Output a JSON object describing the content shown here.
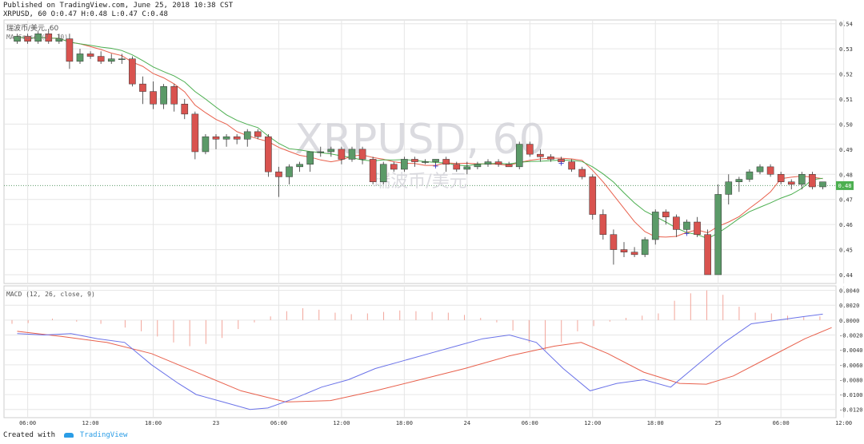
{
  "header": {
    "published": "Published on TradingView.com, June 25, 2018 10:38 CST",
    "symbol_line": "XRPUSD, 60 O:0.47 H:0.48 L:0.47 C:0.48"
  },
  "footer": {
    "created_with": "Created with",
    "brand": "TradingView"
  },
  "colors": {
    "up": "#5b9a68",
    "down": "#d9534f",
    "ma_fast": "#e8604c",
    "ma_slow": "#4caf50",
    "macd": "#6a72e8",
    "signal": "#e8604c",
    "hist": "#f2a59a",
    "grid": "#e6e6e6"
  },
  "chart_data": [
    {
      "type": "candlestick",
      "title": "瑞波币/美元, 60",
      "indicator_label": "MA Cross (7, 10)",
      "watermark": "XRPUSD, 60",
      "watermark_sub": "瑞波币/美元",
      "last_price_label": "0.48",
      "last_price": 0.4755,
      "ylim": [
        0.4365,
        0.5415
      ],
      "y_ticks": [
        "0.54",
        "0.53",
        "0.52",
        "0.51",
        "0.50",
        "0.49",
        "0.48",
        "0.47",
        "0.46",
        "0.45",
        "0.44"
      ],
      "x_ticks": [
        {
          "i": 1,
          "label": "06:00"
        },
        {
          "i": 7,
          "label": "12:00"
        },
        {
          "i": 13,
          "label": "18:00"
        },
        {
          "i": 19,
          "label": "23"
        },
        {
          "i": 25,
          "label": "06:00"
        },
        {
          "i": 31,
          "label": "12:00"
        },
        {
          "i": 37,
          "label": "18:00"
        },
        {
          "i": 43,
          "label": "24"
        },
        {
          "i": 49,
          "label": "06:00"
        },
        {
          "i": 55,
          "label": "12:00"
        },
        {
          "i": 61,
          "label": "18:00"
        },
        {
          "i": 67,
          "label": "25"
        },
        {
          "i": 73,
          "label": "06:00"
        },
        {
          "i": 79,
          "label": "12:00"
        }
      ],
      "candles": [
        [
          0.533,
          0.536,
          0.532,
          0.535
        ],
        [
          0.535,
          0.536,
          0.532,
          0.533
        ],
        [
          0.533,
          0.537,
          0.532,
          0.536
        ],
        [
          0.536,
          0.538,
          0.532,
          0.533
        ],
        [
          0.533,
          0.536,
          0.532,
          0.534
        ],
        [
          0.534,
          0.536,
          0.522,
          0.525
        ],
        [
          0.525,
          0.53,
          0.524,
          0.528
        ],
        [
          0.528,
          0.529,
          0.526,
          0.527
        ],
        [
          0.527,
          0.529,
          0.524,
          0.525
        ],
        [
          0.525,
          0.528,
          0.524,
          0.526
        ],
        [
          0.526,
          0.528,
          0.524,
          0.526
        ],
        [
          0.526,
          0.527,
          0.515,
          0.516
        ],
        [
          0.516,
          0.519,
          0.508,
          0.513
        ],
        [
          0.513,
          0.517,
          0.506,
          0.508
        ],
        [
          0.508,
          0.516,
          0.506,
          0.515
        ],
        [
          0.515,
          0.516,
          0.505,
          0.508
        ],
        [
          0.508,
          0.51,
          0.502,
          0.504
        ],
        [
          0.504,
          0.505,
          0.486,
          0.489
        ],
        [
          0.489,
          0.496,
          0.488,
          0.495
        ],
        [
          0.495,
          0.496,
          0.49,
          0.494
        ],
        [
          0.494,
          0.496,
          0.491,
          0.495
        ],
        [
          0.495,
          0.496,
          0.492,
          0.494
        ],
        [
          0.494,
          0.498,
          0.491,
          0.497
        ],
        [
          0.497,
          0.498,
          0.494,
          0.495
        ],
        [
          0.495,
          0.496,
          0.479,
          0.481
        ],
        [
          0.481,
          0.483,
          0.471,
          0.479
        ],
        [
          0.479,
          0.484,
          0.476,
          0.483
        ],
        [
          0.483,
          0.485,
          0.481,
          0.484
        ],
        [
          0.484,
          0.488,
          0.481,
          0.489
        ],
        [
          0.489,
          0.491,
          0.487,
          0.489
        ],
        [
          0.489,
          0.491,
          0.487,
          0.49
        ],
        [
          0.49,
          0.491,
          0.484,
          0.486
        ],
        [
          0.486,
          0.491,
          0.485,
          0.49
        ],
        [
          0.49,
          0.491,
          0.484,
          0.486
        ],
        [
          0.486,
          0.487,
          0.476,
          0.477
        ],
        [
          0.477,
          0.485,
          0.476,
          0.484
        ],
        [
          0.484,
          0.485,
          0.481,
          0.482
        ],
        [
          0.482,
          0.487,
          0.481,
          0.486
        ],
        [
          0.486,
          0.487,
          0.483,
          0.485
        ],
        [
          0.485,
          0.486,
          0.484,
          0.485
        ],
        [
          0.485,
          0.486,
          0.483,
          0.486
        ],
        [
          0.486,
          0.487,
          0.481,
          0.484
        ],
        [
          0.484,
          0.485,
          0.481,
          0.482
        ],
        [
          0.482,
          0.485,
          0.48,
          0.483
        ],
        [
          0.483,
          0.485,
          0.482,
          0.484
        ],
        [
          0.484,
          0.486,
          0.483,
          0.485
        ],
        [
          0.485,
          0.486,
          0.483,
          0.484
        ],
        [
          0.484,
          0.485,
          0.483,
          0.483
        ],
        [
          0.483,
          0.493,
          0.482,
          0.492
        ],
        [
          0.492,
          0.493,
          0.487,
          0.488
        ],
        [
          0.488,
          0.49,
          0.485,
          0.487
        ],
        [
          0.487,
          0.488,
          0.485,
          0.486
        ],
        [
          0.486,
          0.487,
          0.484,
          0.485
        ],
        [
          0.485,
          0.486,
          0.481,
          0.482
        ],
        [
          0.482,
          0.483,
          0.478,
          0.479
        ],
        [
          0.479,
          0.48,
          0.462,
          0.464
        ],
        [
          0.464,
          0.466,
          0.454,
          0.456
        ],
        [
          0.456,
          0.458,
          0.444,
          0.45
        ],
        [
          0.45,
          0.453,
          0.447,
          0.449
        ],
        [
          0.449,
          0.451,
          0.447,
          0.448
        ],
        [
          0.448,
          0.455,
          0.447,
          0.454
        ],
        [
          0.454,
          0.466,
          0.452,
          0.465
        ],
        [
          0.465,
          0.466,
          0.46,
          0.463
        ],
        [
          0.463,
          0.464,
          0.455,
          0.458
        ],
        [
          0.458,
          0.462,
          0.456,
          0.461
        ],
        [
          0.461,
          0.463,
          0.455,
          0.456
        ],
        [
          0.456,
          0.458,
          0.44,
          0.44
        ],
        [
          0.44,
          0.476,
          0.44,
          0.472
        ],
        [
          0.472,
          0.48,
          0.468,
          0.477
        ],
        [
          0.477,
          0.479,
          0.473,
          0.478
        ],
        [
          0.478,
          0.482,
          0.477,
          0.481
        ],
        [
          0.481,
          0.484,
          0.48,
          0.483
        ],
        [
          0.483,
          0.484,
          0.479,
          0.48
        ],
        [
          0.48,
          0.481,
          0.476,
          0.477
        ],
        [
          0.477,
          0.478,
          0.474,
          0.476
        ],
        [
          0.476,
          0.481,
          0.474,
          0.48
        ],
        [
          0.48,
          0.481,
          0.474,
          0.475
        ],
        [
          0.475,
          0.477,
          0.474,
          0.477
        ]
      ],
      "cross_markers": [
        40,
        52,
        64
      ]
    },
    {
      "type": "macd",
      "title": "MACD (12, 26, close, 9)",
      "ylim": [
        -0.0131,
        0.0046
      ],
      "y_ticks": [
        "0.0040",
        "0.0020",
        "0.0000",
        "-0.0020",
        "-0.0040",
        "-0.0060",
        "-0.0080",
        "-0.0100",
        "-0.0120"
      ],
      "macd": [
        [
          0,
          -0.0018
        ],
        [
          3,
          -0.002
        ],
        [
          6,
          -0.0018
        ],
        [
          9,
          -0.0025
        ],
        [
          12,
          -0.003
        ],
        [
          15,
          -0.006
        ],
        [
          18,
          -0.0085
        ],
        [
          20,
          -0.01
        ],
        [
          23,
          -0.011
        ],
        [
          26,
          -0.012
        ],
        [
          28,
          -0.0118
        ],
        [
          31,
          -0.0105
        ],
        [
          34,
          -0.009
        ],
        [
          37,
          -0.008
        ],
        [
          40,
          -0.0065
        ],
        [
          43,
          -0.0055
        ],
        [
          46,
          -0.0045
        ],
        [
          49,
          -0.0035
        ],
        [
          52,
          -0.0025
        ],
        [
          55,
          -0.002
        ],
        [
          58,
          -0.003
        ],
        [
          61,
          -0.0065
        ],
        [
          64,
          -0.0095
        ],
        [
          67,
          -0.0085
        ],
        [
          70,
          -0.008
        ],
        [
          73,
          -0.009
        ],
        [
          76,
          -0.006
        ],
        [
          79,
          -0.003
        ],
        [
          82,
          -0.0005
        ],
        [
          85,
          0.0
        ],
        [
          88,
          0.0005
        ],
        [
          90,
          0.0008
        ]
      ],
      "signal": [
        [
          0,
          -0.0015
        ],
        [
          5,
          -0.0022
        ],
        [
          10,
          -0.003
        ],
        [
          15,
          -0.0045
        ],
        [
          20,
          -0.007
        ],
        [
          25,
          -0.0095
        ],
        [
          30,
          -0.011
        ],
        [
          35,
          -0.0108
        ],
        [
          40,
          -0.0095
        ],
        [
          45,
          -0.008
        ],
        [
          50,
          -0.0065
        ],
        [
          55,
          -0.0048
        ],
        [
          60,
          -0.0035
        ],
        [
          63,
          -0.003
        ],
        [
          66,
          -0.0045
        ],
        [
          70,
          -0.007
        ],
        [
          74,
          -0.0085
        ],
        [
          77,
          -0.0086
        ],
        [
          80,
          -0.0075
        ],
        [
          84,
          -0.005
        ],
        [
          88,
          -0.0025
        ],
        [
          91,
          -0.001
        ]
      ],
      "histogram": [
        [
          0,
          -0.0005
        ],
        [
          2,
          -0.0004
        ],
        [
          5,
          0.0002
        ],
        [
          8,
          -0.0002
        ],
        [
          11,
          -0.0005
        ],
        [
          14,
          -0.001
        ],
        [
          16,
          -0.0015
        ],
        [
          18,
          -0.0022
        ],
        [
          20,
          -0.003
        ],
        [
          22,
          -0.0035
        ],
        [
          24,
          -0.0032
        ],
        [
          26,
          -0.0024
        ],
        [
          28,
          -0.0012
        ],
        [
          30,
          -0.0003
        ],
        [
          32,
          0.0005
        ],
        [
          34,
          0.0012
        ],
        [
          36,
          0.0016
        ],
        [
          38,
          0.0014
        ],
        [
          40,
          0.001
        ],
        [
          42,
          0.0008
        ],
        [
          44,
          0.0009
        ],
        [
          46,
          0.0011
        ],
        [
          48,
          0.0013
        ],
        [
          50,
          0.0012
        ],
        [
          52,
          0.0011
        ],
        [
          54,
          0.001
        ],
        [
          56,
          0.0007
        ],
        [
          58,
          0.0003
        ],
        [
          60,
          -0.0003
        ],
        [
          62,
          -0.0014
        ],
        [
          64,
          -0.003
        ],
        [
          66,
          -0.004
        ],
        [
          68,
          -0.003
        ],
        [
          70,
          -0.0015
        ],
        [
          72,
          -0.0008
        ],
        [
          74,
          -0.0002
        ],
        [
          76,
          0.0003
        ],
        [
          78,
          0.0006
        ],
        [
          80,
          0.0009
        ],
        [
          82,
          0.0026
        ],
        [
          84,
          0.0036
        ],
        [
          86,
          0.004
        ],
        [
          88,
          0.0034
        ],
        [
          90,
          0.0018
        ],
        [
          92,
          0.001
        ],
        [
          94,
          0.0009
        ],
        [
          96,
          0.0006
        ],
        [
          98,
          0.0004
        ],
        [
          100,
          0.0005
        ]
      ]
    }
  ]
}
